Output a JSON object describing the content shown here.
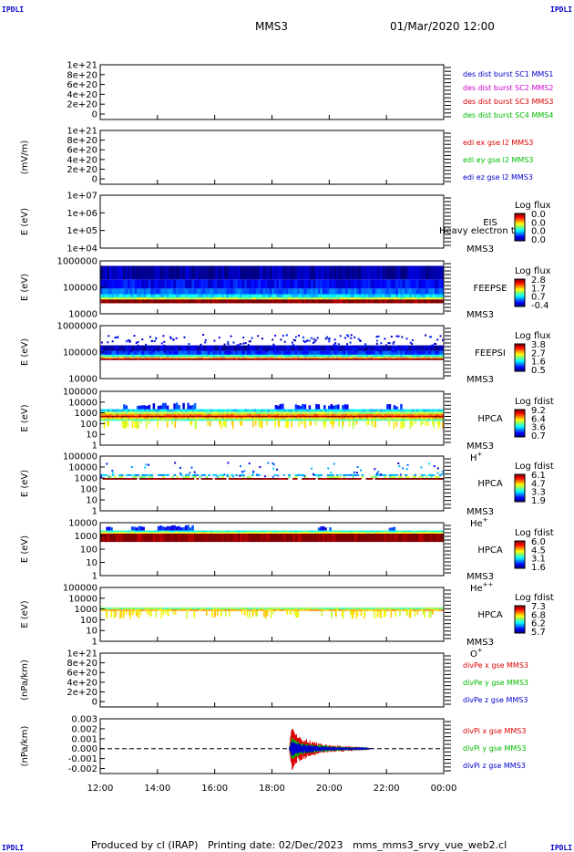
{
  "header": {
    "corner_label": "IPDLI",
    "spacecraft": "MMS3",
    "datetime": "01/Mar/2020 12:00"
  },
  "footer": {
    "text": "Produced by cl (IRAP)   Printing date: 02/Dec/2023   mms_mms3_srvy_vue_web2.cl"
  },
  "chart_data": [
    {
      "id": "des-dist",
      "type": "line",
      "ylabel": "",
      "ytick_labels": [
        "1e+21",
        "8e+20",
        "6e+20",
        "4e+20",
        "2e+20",
        "0"
      ],
      "ylim": [
        0,
        1e+21
      ],
      "legend": [
        {
          "text": "des dist burst SC1 MMS1",
          "color": "#0000cc"
        },
        {
          "text": "des dist burst SC2 MMS2",
          "color": "#cc00cc"
        },
        {
          "text": "des dist burst SC3 MMS3",
          "color": "#dd0000"
        },
        {
          "text": "des dist burst SC4 MMS4",
          "color": "#00bb00"
        }
      ],
      "series": []
    },
    {
      "id": "edi-e",
      "type": "line",
      "ylabel": "(mV/m)",
      "ytick_labels": [
        "1e+21",
        "8e+20",
        "6e+20",
        "4e+20",
        "2e+20",
        "0"
      ],
      "ylim": [
        0,
        1e+21
      ],
      "legend": [
        {
          "text": "edi ex gse l2 MMS3",
          "color": "#dd0000"
        },
        {
          "text": "edi ey gse l2 MMS3",
          "color": "#00bb00"
        },
        {
          "text": "edi ez gse l2 MMS3",
          "color": "#0000cc"
        }
      ],
      "series": []
    },
    {
      "id": "eis",
      "type": "heatmap",
      "ylabel": "E (eV)",
      "ytick_labels": [
        "1e+07",
        "1e+06",
        "1e+05",
        "1e+04"
      ],
      "ylim": [
        10000.0,
        10000000.0
      ],
      "yscale": "log",
      "labels": [
        "EIS",
        "MMS3"
      ],
      "overlay_text": "Heavy electron tof",
      "colorbar": {
        "title": "Log flux",
        "ticks": [
          "0.0",
          "0.0",
          "0.0",
          "0.0"
        ]
      },
      "empty": true
    },
    {
      "id": "feeps-e",
      "type": "heatmap",
      "ylabel": "E (eV)",
      "ytick_labels": [
        "1000000",
        "100000",
        "10000"
      ],
      "ylim": [
        10000,
        1000000
      ],
      "yscale": "log",
      "labels": [
        "FEEPSE",
        "MMS3"
      ],
      "colorbar": {
        "title": "Log flux",
        "ticks": [
          "2.8",
          "1.7",
          "0.7",
          "-0.4"
        ]
      },
      "bands": [
        {
          "from": 25000,
          "to": 35000,
          "level": 1.0
        },
        {
          "from": 35000,
          "to": 42000,
          "level": 0.55
        },
        {
          "from": 42000,
          "to": 55000,
          "level": 0.35
        },
        {
          "from": 55000,
          "to": 90000,
          "level": 0.22
        },
        {
          "from": 90000,
          "to": 200000,
          "level": 0.12
        },
        {
          "from": 200000,
          "to": 650000,
          "level": 0.04
        }
      ]
    },
    {
      "id": "feeps-i",
      "type": "heatmap",
      "ylabel": "E (eV)",
      "ytick_labels": [
        "1000000",
        "100000",
        "10000"
      ],
      "ylim": [
        10000,
        1000000
      ],
      "yscale": "log",
      "labels": [
        "FEEPSI",
        "MMS3"
      ],
      "colorbar": {
        "title": "Log flux",
        "ticks": [
          "3.8",
          "2.7",
          "1.6",
          "0.5"
        ]
      },
      "bands": [
        {
          "from": 50000,
          "to": 58000,
          "level": 1.0
        },
        {
          "from": 58000,
          "to": 66000,
          "level": 0.7
        },
        {
          "from": 66000,
          "to": 80000,
          "level": 0.4
        },
        {
          "from": 80000,
          "to": 110000,
          "level": 0.18
        },
        {
          "from": 110000,
          "to": 180000,
          "level": 0.06
        }
      ]
    },
    {
      "id": "hpca-h",
      "type": "heatmap",
      "ylabel": "E (eV)",
      "ytick_labels": [
        "100000",
        "10000",
        "1000",
        "100",
        "10",
        "1"
      ],
      "ylim": [
        1,
        100000
      ],
      "yscale": "log",
      "labels": [
        "HPCA",
        "MMS3"
      ],
      "species": "H",
      "species_sup": "+",
      "colorbar": {
        "title": "Log fdist",
        "ticks": [
          "9.2",
          "6.4",
          "3.6",
          "0.7"
        ]
      },
      "bands": [
        {
          "from": 380,
          "to": 550,
          "level": 0.95
        },
        {
          "from": 550,
          "to": 800,
          "level": 0.75
        },
        {
          "from": 800,
          "to": 1300,
          "level": 0.55
        },
        {
          "from": 260,
          "to": 380,
          "level": 0.65
        },
        {
          "from": 180,
          "to": 260,
          "level": 0.45
        },
        {
          "from": 1300,
          "to": 2200,
          "level": 0.35
        }
      ],
      "bursts": [
        {
          "t": [
            12.8,
            13.9
          ],
          "from": 2200,
          "to": 9000
        },
        {
          "t": [
            14.0,
            15.3
          ],
          "from": 2200,
          "to": 9000
        },
        {
          "t": [
            18.1,
            18.4
          ],
          "from": 2200,
          "to": 7000
        },
        {
          "t": [
            18.8,
            19.6
          ],
          "from": 2200,
          "to": 8000
        },
        {
          "t": [
            19.8,
            20.6
          ],
          "from": 2200,
          "to": 7000
        },
        {
          "t": [
            22.0,
            22.5
          ],
          "from": 2200,
          "to": 7000
        }
      ]
    },
    {
      "id": "hpca-he1",
      "type": "heatmap",
      "ylabel": "E (eV)",
      "ytick_labels": [
        "100000",
        "10000",
        "1000",
        "100",
        "10",
        "1"
      ],
      "ylim": [
        1,
        100000
      ],
      "yscale": "log",
      "labels": [
        "HPCA",
        "MMS3"
      ],
      "species": "He",
      "species_sup": "+",
      "colorbar": {
        "title": "Log fdist",
        "ticks": [
          "6.1",
          "4.7",
          "3.3",
          "1.9"
        ]
      },
      "bands": [
        {
          "from": 700,
          "to": 1000,
          "level": 1.0
        },
        {
          "from": 1000,
          "to": 1500,
          "level": 0.55
        },
        {
          "from": 1500,
          "to": 2200,
          "level": 0.3
        }
      ],
      "sparse": true
    },
    {
      "id": "hpca-he2",
      "type": "heatmap",
      "ylabel": "E (eV)",
      "ytick_labels": [
        "10000",
        "1000",
        "100",
        "10",
        "1"
      ],
      "ylim": [
        1,
        10000
      ],
      "yscale": "log",
      "labels": [
        "HPCA",
        "MMS3"
      ],
      "species": "He",
      "species_sup": "++",
      "colorbar": {
        "title": "Log fdist",
        "ticks": [
          "6.0",
          "4.5",
          "3.1",
          "1.6"
        ]
      },
      "bands": [
        {
          "from": 350,
          "to": 1500,
          "level": 1.0
        },
        {
          "from": 1500,
          "to": 2000,
          "level": 0.6
        },
        {
          "from": 2000,
          "to": 2600,
          "level": 0.4
        }
      ],
      "bursts": [
        {
          "t": [
            12.2,
            12.4
          ],
          "from": 2600,
          "to": 6000
        },
        {
          "t": [
            13.0,
            13.6
          ],
          "from": 2600,
          "to": 7000
        },
        {
          "t": [
            14.0,
            15.3
          ],
          "from": 2600,
          "to": 7000
        },
        {
          "t": [
            19.6,
            20.0
          ],
          "from": 2600,
          "to": 6000
        },
        {
          "t": [
            22.0,
            22.3
          ],
          "from": 2600,
          "to": 6000
        }
      ]
    },
    {
      "id": "hpca-o",
      "type": "heatmap",
      "ylabel": "E (eV)",
      "ytick_labels": [
        "100000",
        "10000",
        "1000",
        "100",
        "10",
        "1"
      ],
      "ylim": [
        1,
        100000
      ],
      "yscale": "log",
      "labels": [
        "HPCA",
        "MMS3"
      ],
      "species": "O",
      "species_sup": "+",
      "colorbar": {
        "title": "Log fdist",
        "ticks": [
          "7.3",
          "6.8",
          "6.2",
          "5.7"
        ]
      },
      "bands": [
        {
          "from": 650,
          "to": 900,
          "level": 0.7
        },
        {
          "from": 900,
          "to": 1400,
          "level": 0.5
        }
      ]
    },
    {
      "id": "divpe",
      "type": "line",
      "ylabel": "(nPa/km)",
      "ytick_labels": [
        "1e+21",
        "8e+20",
        "6e+20",
        "4e+20",
        "2e+20",
        "0"
      ],
      "ylim": [
        0,
        1e+21
      ],
      "legend": [
        {
          "text": "divPe x gse MMS3",
          "color": "#dd0000"
        },
        {
          "text": "divPe y gse MMS3",
          "color": "#00bb00"
        },
        {
          "text": "divPe z gse MMS3",
          "color": "#0000cc"
        }
      ],
      "series": []
    },
    {
      "id": "divpi",
      "type": "line",
      "ylabel": "(nPa/km)",
      "ytick_labels": [
        "0.003",
        "0.002",
        "0.001",
        "0.000",
        "-0.001",
        "-0.002"
      ],
      "ylim": [
        -0.0025,
        0.003
      ],
      "legend": [
        {
          "text": "divPi x gse MMS3",
          "color": "#dd0000"
        },
        {
          "text": "divPi y gse MMS3",
          "color": "#00bb00"
        },
        {
          "text": "divPi z gse MMS3",
          "color": "#0000cc"
        }
      ],
      "series": [
        {
          "name": "divPi x gse MMS3",
          "color": "#dd0000",
          "t": [
            18.6,
            18.7,
            18.8,
            19.0,
            19.3,
            19.6,
            20.0,
            20.5,
            21.0,
            21.5
          ],
          "amp": [
            0.0,
            0.0024,
            0.0016,
            0.0012,
            0.0009,
            0.0006,
            0.0004,
            0.0003,
            0.0002,
            0.0
          ]
        },
        {
          "name": "divPi y gse MMS3",
          "color": "#00bb00",
          "t": [
            18.6,
            18.7,
            18.8,
            19.0,
            19.3,
            19.6,
            20.0,
            20.5,
            21.0,
            21.5
          ],
          "amp": [
            0.0,
            0.0012,
            0.0009,
            0.0007,
            0.0005,
            0.0004,
            0.0003,
            0.0002,
            0.00015,
            0.0
          ]
        },
        {
          "name": "divPi z gse MMS3",
          "color": "#0000cc",
          "t": [
            18.6,
            18.7,
            18.8,
            19.0,
            19.3,
            19.6,
            20.0,
            20.5,
            21.0,
            21.5
          ],
          "amp": [
            0.0,
            0.0008,
            0.0006,
            0.0005,
            0.0004,
            0.0003,
            0.0002,
            0.00015,
            0.0001,
            0.0
          ]
        }
      ]
    }
  ],
  "time_axis": {
    "ticks": [
      "12:00",
      "14:00",
      "16:00",
      "18:00",
      "20:00",
      "22:00",
      "00:00"
    ],
    "range_hours": [
      12,
      24
    ]
  }
}
